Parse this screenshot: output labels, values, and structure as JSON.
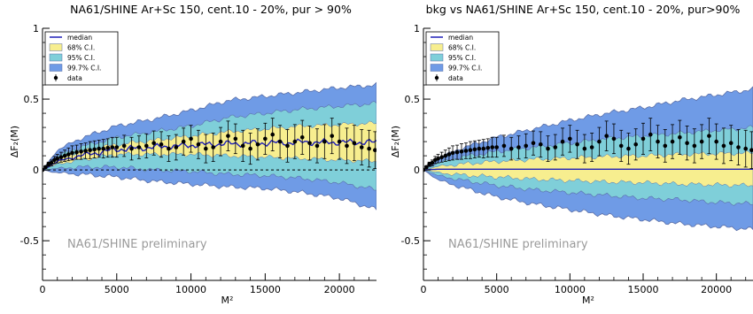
{
  "colors": {
    "c997": "#6f9be6",
    "c95": "#7fcfd9",
    "c68": "#f7ee8f",
    "median": "#1f1fb8",
    "data": "#000000",
    "band_edge": "#5b6fa8",
    "watermark": "#9a9a9a"
  },
  "chart_data": [
    {
      "type": "area",
      "title": "NA61/SHINE Ar+Sc 150, cent.10 - 20%, pur > 90%",
      "xlabel": "M²",
      "ylabel": "ΔF₂(M)",
      "xlim": [
        0,
        22500
      ],
      "ylim": [
        -0.78,
        1.0
      ],
      "xticks": [
        0,
        5000,
        10000,
        15000,
        20000
      ],
      "xtick_labels": [
        "0",
        "5000",
        "10000",
        "15000",
        "20000"
      ],
      "yticks": [
        -0.5,
        0,
        0.5,
        1
      ],
      "ytick_labels": [
        "-0.5",
        "0",
        "0.5",
        "1"
      ],
      "grid": false,
      "legend_position": "top-left",
      "legend": [
        "median",
        "68% C.I.",
        "95% C.I.",
        "99.7% C.I.",
        "data"
      ],
      "watermark": "NA61/SHINE preliminary",
      "reference_line_y": 0,
      "x": [
        0,
        1000,
        2500,
        5000,
        7500,
        10000,
        12500,
        15000,
        17500,
        20000,
        22500
      ],
      "band_997_upper": [
        0.0,
        0.14,
        0.22,
        0.31,
        0.36,
        0.42,
        0.49,
        0.52,
        0.55,
        0.58,
        0.6
      ],
      "band_997_lower": [
        0.0,
        -0.02,
        -0.03,
        -0.05,
        -0.08,
        -0.1,
        -0.12,
        -0.13,
        -0.16,
        -0.2,
        -0.28
      ],
      "band_95_upper": [
        0.0,
        0.1,
        0.16,
        0.23,
        0.27,
        0.31,
        0.37,
        0.4,
        0.43,
        0.45,
        0.47
      ],
      "band_95_lower": [
        0.0,
        0.01,
        0.02,
        0.02,
        0.0,
        -0.01,
        -0.03,
        -0.04,
        -0.06,
        -0.09,
        -0.14
      ],
      "band_68_upper": [
        0.0,
        0.08,
        0.13,
        0.18,
        0.21,
        0.24,
        0.27,
        0.29,
        0.31,
        0.32,
        0.33
      ],
      "band_68_lower": [
        0.0,
        0.04,
        0.07,
        0.11,
        0.11,
        0.11,
        0.1,
        0.09,
        0.08,
        0.07,
        0.06
      ],
      "median": [
        0.0,
        0.06,
        0.1,
        0.145,
        0.16,
        0.175,
        0.185,
        0.19,
        0.195,
        0.195,
        0.195
      ],
      "data_series": {
        "x": [
          0,
          200,
          400,
          600,
          800,
          1000,
          1250,
          1500,
          1750,
          2000,
          2300,
          2600,
          2900,
          3200,
          3500,
          3800,
          4100,
          4400,
          4700,
          5000,
          5500,
          6000,
          6500,
          7000,
          7500,
          8000,
          8500,
          9000,
          9500,
          10000,
          10500,
          11000,
          11500,
          12000,
          12500,
          13000,
          13500,
          14000,
          14500,
          15000,
          15500,
          16000,
          16500,
          17000,
          17500,
          18000,
          18500,
          19000,
          19500,
          20000,
          20500,
          21000,
          21500,
          22000,
          22400
        ],
        "y": [
          0.0,
          0.02,
          0.04,
          0.05,
          0.07,
          0.08,
          0.09,
          0.1,
          0.11,
          0.12,
          0.125,
          0.13,
          0.135,
          0.14,
          0.145,
          0.15,
          0.15,
          0.155,
          0.16,
          0.16,
          0.17,
          0.15,
          0.16,
          0.17,
          0.19,
          0.18,
          0.15,
          0.16,
          0.2,
          0.22,
          0.18,
          0.15,
          0.16,
          0.2,
          0.24,
          0.22,
          0.17,
          0.15,
          0.18,
          0.22,
          0.25,
          0.2,
          0.17,
          0.2,
          0.23,
          0.19,
          0.17,
          0.2,
          0.24,
          0.2,
          0.17,
          0.19,
          0.16,
          0.15,
          0.14
        ],
        "err": [
          0.005,
          0.01,
          0.015,
          0.02,
          0.025,
          0.03,
          0.035,
          0.04,
          0.045,
          0.05,
          0.05,
          0.055,
          0.055,
          0.06,
          0.06,
          0.06,
          0.065,
          0.065,
          0.07,
          0.07,
          0.075,
          0.08,
          0.08,
          0.085,
          0.085,
          0.09,
          0.09,
          0.09,
          0.095,
          0.095,
          0.1,
          0.1,
          0.1,
          0.1,
          0.105,
          0.105,
          0.11,
          0.11,
          0.11,
          0.11,
          0.115,
          0.115,
          0.115,
          0.12,
          0.12,
          0.12,
          0.12,
          0.12,
          0.125,
          0.125,
          0.125,
          0.125,
          0.125,
          0.13,
          0.13
        ]
      }
    },
    {
      "type": "area",
      "title": "bkg vs NA61/SHINE Ar+Sc 150, cent.10 - 20%, pur>90%",
      "xlabel": "M²",
      "ylabel": "ΔF₂(M)",
      "xlim": [
        0,
        22500
      ],
      "ylim": [
        -0.78,
        1.0
      ],
      "xticks": [
        0,
        5000,
        10000,
        15000,
        20000
      ],
      "xtick_labels": [
        "0",
        "5000",
        "10000",
        "15000",
        "20000"
      ],
      "yticks": [
        -0.5,
        0,
        0.5,
        1
      ],
      "ytick_labels": [
        "-0.5",
        "0",
        "0.5",
        "1"
      ],
      "grid": false,
      "legend_position": "top-left",
      "legend": [
        "median",
        "68% C.I.",
        "95% C.I.",
        "99.7% C.I.",
        "data"
      ],
      "watermark": "NA61/SHINE preliminary",
      "reference_line_y": null,
      "x": [
        0,
        1000,
        2500,
        5000,
        7500,
        10000,
        12500,
        15000,
        17500,
        20000,
        22500
      ],
      "band_997_upper": [
        0.0,
        0.08,
        0.15,
        0.23,
        0.29,
        0.35,
        0.4,
        0.44,
        0.49,
        0.53,
        0.57
      ],
      "band_997_lower": [
        0.0,
        -0.07,
        -0.12,
        -0.19,
        -0.24,
        -0.28,
        -0.32,
        -0.35,
        -0.38,
        -0.4,
        -0.42
      ],
      "band_95_upper": [
        0.0,
        0.05,
        0.09,
        0.13,
        0.16,
        0.19,
        0.22,
        0.24,
        0.26,
        0.28,
        0.3
      ],
      "band_95_lower": [
        0.0,
        -0.04,
        -0.07,
        -0.11,
        -0.14,
        -0.16,
        -0.18,
        -0.2,
        -0.21,
        -0.23,
        -0.24
      ],
      "band_68_upper": [
        0.0,
        0.025,
        0.04,
        0.06,
        0.075,
        0.085,
        0.095,
        0.1,
        0.11,
        0.115,
        0.12
      ],
      "band_68_lower": [
        0.0,
        -0.02,
        -0.035,
        -0.05,
        -0.065,
        -0.075,
        -0.085,
        -0.09,
        -0.1,
        -0.105,
        -0.11
      ],
      "median": [
        0.0,
        0.005,
        0.005,
        0.005,
        0.005,
        0.005,
        0.005,
        0.005,
        0.005,
        0.005,
        0.005
      ],
      "data_series": {
        "x": [
          0,
          200,
          400,
          600,
          800,
          1000,
          1250,
          1500,
          1750,
          2000,
          2300,
          2600,
          2900,
          3200,
          3500,
          3800,
          4100,
          4400,
          4700,
          5000,
          5500,
          6000,
          6500,
          7000,
          7500,
          8000,
          8500,
          9000,
          9500,
          10000,
          10500,
          11000,
          11500,
          12000,
          12500,
          13000,
          13500,
          14000,
          14500,
          15000,
          15500,
          16000,
          16500,
          17000,
          17500,
          18000,
          18500,
          19000,
          19500,
          20000,
          20500,
          21000,
          21500,
          22000,
          22400
        ],
        "y": [
          0.0,
          0.02,
          0.04,
          0.05,
          0.07,
          0.08,
          0.09,
          0.1,
          0.11,
          0.12,
          0.125,
          0.13,
          0.135,
          0.14,
          0.145,
          0.15,
          0.15,
          0.155,
          0.16,
          0.16,
          0.17,
          0.15,
          0.16,
          0.17,
          0.19,
          0.18,
          0.15,
          0.16,
          0.2,
          0.22,
          0.18,
          0.15,
          0.16,
          0.2,
          0.24,
          0.22,
          0.17,
          0.15,
          0.18,
          0.22,
          0.25,
          0.2,
          0.17,
          0.2,
          0.23,
          0.19,
          0.17,
          0.2,
          0.24,
          0.2,
          0.17,
          0.19,
          0.16,
          0.15,
          0.14
        ],
        "err": [
          0.005,
          0.01,
          0.015,
          0.02,
          0.025,
          0.03,
          0.035,
          0.04,
          0.045,
          0.05,
          0.05,
          0.055,
          0.055,
          0.06,
          0.06,
          0.06,
          0.065,
          0.065,
          0.07,
          0.07,
          0.075,
          0.08,
          0.08,
          0.085,
          0.085,
          0.09,
          0.09,
          0.09,
          0.095,
          0.095,
          0.1,
          0.1,
          0.1,
          0.1,
          0.105,
          0.105,
          0.11,
          0.11,
          0.11,
          0.11,
          0.115,
          0.115,
          0.115,
          0.12,
          0.12,
          0.12,
          0.12,
          0.12,
          0.125,
          0.125,
          0.125,
          0.125,
          0.125,
          0.13,
          0.13
        ]
      }
    }
  ]
}
